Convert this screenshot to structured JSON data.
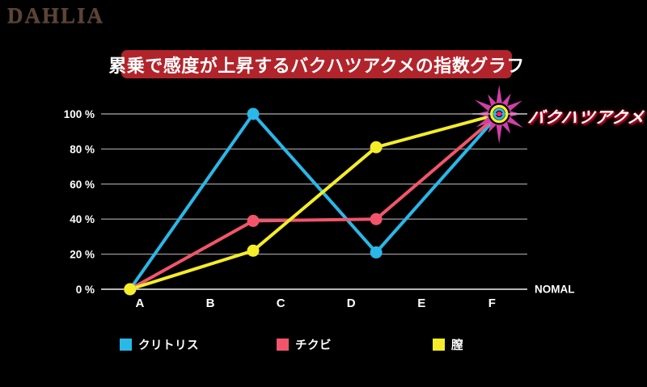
{
  "logo": {
    "text": "DAHLIA"
  },
  "colors": {
    "background": "#000000",
    "banner": "#b2242b",
    "grid": "#8f8f8f",
    "zero_axis": "#cfcfcf",
    "text": "#ffffff",
    "star": "#d03fa8",
    "star_center_dot": "#ee2560",
    "star_ring_inner": "#29b8e8",
    "star_ring_outer": "#f5ed27"
  },
  "chart_data": {
    "type": "line",
    "title": "累乗で感度が上昇するバクハツアクメの指数グラフ",
    "annotation": "バクハツアクメ",
    "x_labels": [
      "A",
      "B",
      "C",
      "D",
      "E",
      "F"
    ],
    "right_axis_label": "NOMAL",
    "y_ticks": [
      {
        "value": 0,
        "label": "0 %"
      },
      {
        "value": 20,
        "label": "20 %"
      },
      {
        "value": 40,
        "label": "40 %"
      },
      {
        "value": 60,
        "label": "60 %"
      },
      {
        "value": 80,
        "label": "80 %"
      },
      {
        "value": 100,
        "label": "100 %"
      }
    ],
    "ylim": [
      0,
      100
    ],
    "grid": true,
    "legend_position": "bottom",
    "series": [
      {
        "name": "クリトリス",
        "color": "#29b8e8",
        "values": [
          0,
          100,
          21,
          100
        ]
      },
      {
        "name": "チクビ",
        "color": "#f2556b",
        "values": [
          0,
          39,
          40,
          100
        ]
      },
      {
        "name": "膣",
        "color": "#f5ed27",
        "values": [
          0,
          22,
          81,
          100
        ]
      }
    ],
    "endpoint": {
      "label": "バクハツアクメ",
      "value": 100,
      "marker": "starburst"
    }
  }
}
